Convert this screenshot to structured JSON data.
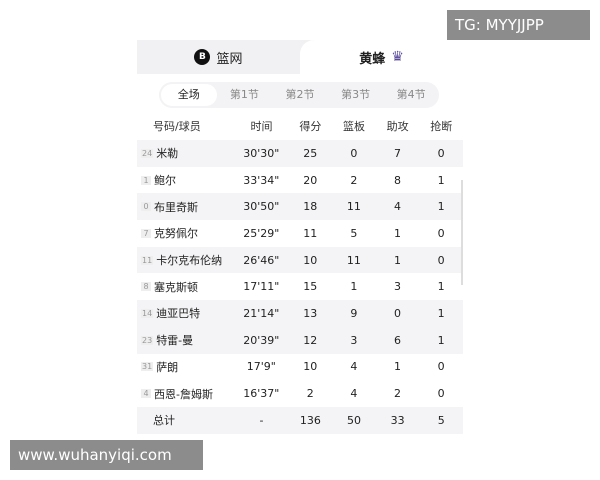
{
  "teams": [
    {
      "name": "篮网",
      "icon": "nets-logo"
    },
    {
      "name": "黄蜂",
      "icon": "hornets-logo"
    }
  ],
  "quarters": [
    "全场",
    "第1节",
    "第2节",
    "第3节",
    "第4节"
  ],
  "columns": [
    "号码/球员",
    "时间",
    "得分",
    "篮板",
    "助攻",
    "抢断"
  ],
  "players": [
    {
      "num": "24",
      "name": "米勒",
      "time": "30'30\"",
      "pts": "25",
      "reb": "0",
      "ast": "7",
      "stl": "0"
    },
    {
      "num": "1",
      "name": "鲍尔",
      "time": "33'34\"",
      "pts": "20",
      "reb": "2",
      "ast": "8",
      "stl": "1"
    },
    {
      "num": "0",
      "name": "布里奇斯",
      "time": "30'50\"",
      "pts": "18",
      "reb": "11",
      "ast": "4",
      "stl": "1"
    },
    {
      "num": "7",
      "name": "克努佩尔",
      "time": "25'29\"",
      "pts": "11",
      "reb": "5",
      "ast": "1",
      "stl": "0"
    },
    {
      "num": "11",
      "name": "卡尔克布伦纳",
      "time": "26'46\"",
      "pts": "10",
      "reb": "11",
      "ast": "1",
      "stl": "0"
    },
    {
      "num": "8",
      "name": "塞克斯顿",
      "time": "17'11\"",
      "pts": "15",
      "reb": "1",
      "ast": "3",
      "stl": "1"
    },
    {
      "num": "14",
      "name": "迪亚巴特",
      "time": "21'14\"",
      "pts": "13",
      "reb": "9",
      "ast": "0",
      "stl": "1"
    },
    {
      "num": "23",
      "name": "特雷-曼",
      "time": "20'39\"",
      "pts": "12",
      "reb": "3",
      "ast": "6",
      "stl": "1"
    },
    {
      "num": "31",
      "name": "萨朗",
      "time": "17'9\"",
      "pts": "10",
      "reb": "4",
      "ast": "1",
      "stl": "0"
    },
    {
      "num": "4",
      "name": "西恩-詹姆斯",
      "time": "16'37\"",
      "pts": "2",
      "reb": "4",
      "ast": "2",
      "stl": "0"
    }
  ],
  "total": {
    "label": "总计",
    "time": "-",
    "pts": "136",
    "reb": "50",
    "ast": "33",
    "stl": "5"
  },
  "watermarks": {
    "top": "TG: MYYJJPP",
    "bottom": "www.wuhanyiqi.com"
  }
}
